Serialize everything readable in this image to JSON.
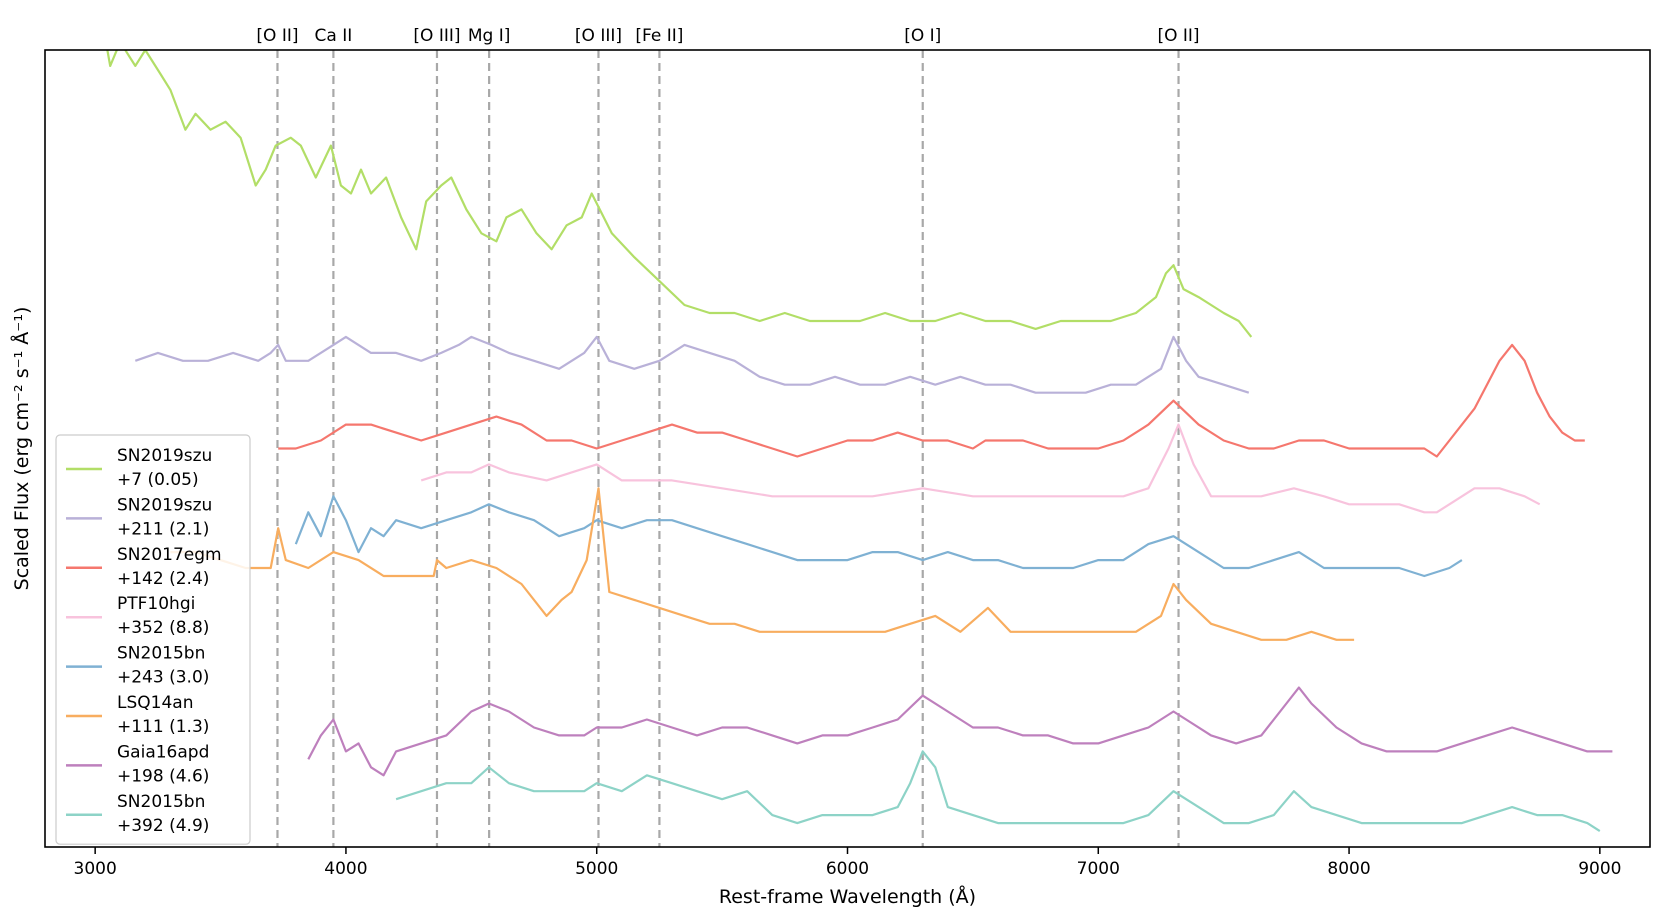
{
  "chart_data": {
    "type": "line",
    "xlabel": "Rest-frame Wavelength (Å)",
    "ylabel": "Scaled Flux (erg cm⁻² s⁻¹ Å⁻¹)",
    "xlim": [
      2800,
      9200
    ],
    "ylim": [
      0,
      100
    ],
    "xticks": [
      3000,
      4000,
      5000,
      6000,
      7000,
      8000,
      9000
    ],
    "y_tick_labels": false,
    "legend_placement": "lower-left",
    "grid": false,
    "lines": [
      {
        "label": "[O II]",
        "x": 3727
      },
      {
        "label": "Ca II",
        "x": 3950
      },
      {
        "label": "[O III]",
        "x": 4363
      },
      {
        "label": "Mg I]",
        "x": 4571
      },
      {
        "label": "[O III]",
        "x": 5007
      },
      {
        "label": "[Fe II]",
        "x": 5250
      },
      {
        "label": "[O I]",
        "x": 6300
      },
      {
        "label": "[O II]",
        "x": 7320
      }
    ],
    "series": [
      {
        "name": "SN2019szu",
        "phase": "+7 (0.05)",
        "color": "#b2de67",
        "x": [
          3020,
          3060,
          3100,
          3160,
          3200,
          3260,
          3300,
          3360,
          3400,
          3460,
          3520,
          3580,
          3640,
          3680,
          3720,
          3780,
          3820,
          3880,
          3940,
          3980,
          4020,
          4060,
          4100,
          4160,
          4220,
          4280,
          4320,
          4380,
          4420,
          4480,
          4540,
          4600,
          4640,
          4700,
          4760,
          4820,
          4880,
          4940,
          4980,
          5060,
          5150,
          5250,
          5350,
          5450,
          5550,
          5650,
          5750,
          5850,
          5950,
          6050,
          6150,
          6250,
          6350,
          6450,
          6550,
          6650,
          6750,
          6850,
          6950,
          7050,
          7150,
          7230,
          7270,
          7300,
          7340,
          7400,
          7450,
          7500,
          7560,
          7610
        ],
        "y": [
          105,
          98,
          101,
          98,
          100,
          97,
          95,
          90,
          92,
          90,
          91,
          89,
          83,
          85,
          88,
          89,
          88,
          84,
          88,
          83,
          82,
          85,
          82,
          84,
          79,
          75,
          81,
          83,
          84,
          80,
          77,
          76,
          79,
          80,
          77,
          75,
          78,
          79,
          82,
          77,
          74,
          71,
          68,
          67,
          67,
          66,
          67,
          66,
          66,
          66,
          67,
          66,
          66,
          67,
          66,
          66,
          65,
          66,
          66,
          66,
          67,
          69,
          72,
          73,
          70,
          69,
          68,
          67,
          66,
          64
        ]
      },
      {
        "name": "SN2019szu",
        "phase": "+211 (2.1)",
        "color": "#b9b1d8",
        "x": [
          3160,
          3250,
          3350,
          3450,
          3550,
          3650,
          3700,
          3730,
          3760,
          3850,
          3950,
          4000,
          4100,
          4200,
          4300,
          4380,
          4450,
          4500,
          4580,
          4650,
          4750,
          4850,
          4950,
          5000,
          5050,
          5150,
          5250,
          5350,
          5450,
          5550,
          5650,
          5750,
          5850,
          5950,
          6050,
          6150,
          6250,
          6350,
          6450,
          6550,
          6650,
          6750,
          6850,
          6950,
          7050,
          7150,
          7250,
          7300,
          7350,
          7400,
          7500,
          7600
        ],
        "y": [
          61,
          62,
          61,
          61,
          62,
          61,
          62,
          63,
          61,
          61,
          63,
          64,
          62,
          62,
          61,
          62,
          63,
          64,
          63,
          62,
          61,
          60,
          62,
          64,
          61,
          60,
          61,
          63,
          62,
          61,
          59,
          58,
          58,
          59,
          58,
          58,
          59,
          58,
          59,
          58,
          58,
          57,
          57,
          57,
          58,
          58,
          60,
          64,
          61,
          59,
          58,
          57
        ]
      },
      {
        "name": "SN2017egm",
        "phase": "+142 (2.4)",
        "color": "#f5776e",
        "x": [
          3730,
          3800,
          3900,
          4000,
          4100,
          4200,
          4300,
          4400,
          4500,
          4600,
          4700,
          4800,
          4900,
          5000,
          5100,
          5200,
          5300,
          5400,
          5500,
          5600,
          5700,
          5800,
          5900,
          6000,
          6100,
          6200,
          6300,
          6400,
          6500,
          6550,
          6600,
          6700,
          6800,
          6900,
          7000,
          7100,
          7200,
          7300,
          7400,
          7500,
          7600,
          7700,
          7800,
          7900,
          8000,
          8100,
          8200,
          8300,
          8350,
          8400,
          8500,
          8600,
          8650,
          8700,
          8750,
          8800,
          8850,
          8900,
          8940
        ],
        "y": [
          50,
          50,
          51,
          53,
          53,
          52,
          51,
          52,
          53,
          54,
          53,
          51,
          51,
          50,
          51,
          52,
          53,
          52,
          52,
          51,
          50,
          49,
          50,
          51,
          51,
          52,
          51,
          51,
          50,
          51,
          51,
          51,
          50,
          50,
          50,
          51,
          53,
          56,
          53,
          51,
          50,
          50,
          51,
          51,
          50,
          50,
          50,
          50,
          49,
          51,
          55,
          61,
          63,
          61,
          57,
          54,
          52,
          51,
          51
        ]
      },
      {
        "name": "PTF10hgi",
        "phase": "+352 (8.8)",
        "color": "#f8c3dd",
        "x": [
          4300,
          4400,
          4500,
          4570,
          4650,
          4800,
          4900,
          5000,
          5100,
          5200,
          5300,
          5500,
          5700,
          5900,
          6100,
          6300,
          6500,
          6700,
          6900,
          7100,
          7200,
          7280,
          7320,
          7380,
          7450,
          7550,
          7650,
          7780,
          7900,
          8000,
          8100,
          8200,
          8300,
          8350,
          8400,
          8500,
          8600,
          8700,
          8760
        ],
        "y": [
          46,
          47,
          47,
          48,
          47,
          46,
          47,
          48,
          46,
          46,
          46,
          45,
          44,
          44,
          44,
          45,
          44,
          44,
          44,
          44,
          45,
          50,
          53,
          48,
          44,
          44,
          44,
          45,
          44,
          43,
          43,
          43,
          42,
          42,
          43,
          45,
          45,
          44,
          43
        ]
      },
      {
        "name": "SN2015bn",
        "phase": "+243 (3.0)",
        "color": "#7fb1d3",
        "x": [
          3800,
          3850,
          3900,
          3950,
          4000,
          4050,
          4100,
          4150,
          4200,
          4300,
          4400,
          4500,
          4570,
          4650,
          4750,
          4850,
          4950,
          5000,
          5100,
          5200,
          5300,
          5400,
          5500,
          5600,
          5700,
          5800,
          5900,
          6000,
          6100,
          6200,
          6300,
          6400,
          6500,
          6600,
          6700,
          6800,
          6900,
          7000,
          7100,
          7200,
          7300,
          7400,
          7500,
          7600,
          7700,
          7800,
          7900,
          8000,
          8100,
          8200,
          8300,
          8400,
          8450
        ],
        "y": [
          38,
          42,
          39,
          44,
          41,
          37,
          40,
          39,
          41,
          40,
          41,
          42,
          43,
          42,
          41,
          39,
          40,
          41,
          40,
          41,
          41,
          40,
          39,
          38,
          37,
          36,
          36,
          36,
          37,
          37,
          36,
          37,
          36,
          36,
          35,
          35,
          35,
          36,
          36,
          38,
          39,
          37,
          35,
          35,
          36,
          37,
          35,
          35,
          35,
          35,
          34,
          35,
          36
        ]
      },
      {
        "name": "LSQ14an",
        "phase": "+111 (1.3)",
        "color": "#f8ad5f",
        "x": [
          3300,
          3400,
          3500,
          3600,
          3700,
          3730,
          3760,
          3850,
          3950,
          4050,
          4150,
          4250,
          4350,
          4363,
          4400,
          4500,
          4600,
          4700,
          4800,
          4860,
          4900,
          4960,
          5007,
          5050,
          5150,
          5250,
          5350,
          5450,
          5550,
          5650,
          5750,
          5850,
          5950,
          6050,
          6150,
          6250,
          6350,
          6450,
          6560,
          6650,
          6750,
          6850,
          6950,
          7050,
          7150,
          7250,
          7300,
          7350,
          7450,
          7550,
          7650,
          7750,
          7850,
          7950,
          8020
        ],
        "y": [
          37,
          37,
          36,
          35,
          35,
          40,
          36,
          35,
          37,
          36,
          34,
          34,
          34,
          36,
          35,
          36,
          35,
          33,
          29,
          31,
          32,
          36,
          45,
          32,
          31,
          30,
          29,
          28,
          28,
          27,
          27,
          27,
          27,
          27,
          27,
          28,
          29,
          27,
          30,
          27,
          27,
          27,
          27,
          27,
          27,
          29,
          33,
          31,
          28,
          27,
          26,
          26,
          27,
          26,
          26
        ]
      },
      {
        "name": "Gaia16apd",
        "phase": "+198 (4.6)",
        "color": "#be80bd",
        "x": [
          3850,
          3900,
          3950,
          4000,
          4050,
          4100,
          4150,
          4200,
          4300,
          4400,
          4500,
          4570,
          4650,
          4750,
          4850,
          4950,
          5000,
          5100,
          5200,
          5300,
          5400,
          5500,
          5600,
          5700,
          5800,
          5900,
          6000,
          6100,
          6200,
          6300,
          6400,
          6500,
          6600,
          6700,
          6800,
          6900,
          7000,
          7100,
          7200,
          7300,
          7350,
          7450,
          7550,
          7650,
          7750,
          7800,
          7850,
          7950,
          8050,
          8150,
          8250,
          8350,
          8450,
          8550,
          8650,
          8750,
          8850,
          8950,
          9050
        ],
        "y": [
          11,
          14,
          16,
          12,
          13,
          10,
          9,
          12,
          13,
          14,
          17,
          18,
          17,
          15,
          14,
          14,
          15,
          15,
          16,
          15,
          14,
          15,
          15,
          14,
          13,
          14,
          14,
          15,
          16,
          19,
          17,
          15,
          15,
          14,
          14,
          13,
          13,
          14,
          15,
          17,
          16,
          14,
          13,
          14,
          18,
          20,
          18,
          15,
          13,
          12,
          12,
          12,
          13,
          14,
          15,
          14,
          13,
          12,
          12
        ]
      },
      {
        "name": "SN2015bn",
        "phase": "+392 (4.9)",
        "color": "#8dd3c7",
        "x": [
          4200,
          4300,
          4400,
          4500,
          4570,
          4650,
          4750,
          4850,
          4950,
          5000,
          5100,
          5200,
          5300,
          5400,
          5500,
          5600,
          5700,
          5800,
          5900,
          6000,
          6100,
          6200,
          6250,
          6300,
          6350,
          6400,
          6500,
          6600,
          6700,
          6800,
          6900,
          7000,
          7100,
          7200,
          7300,
          7400,
          7500,
          7600,
          7700,
          7780,
          7850,
          7950,
          8050,
          8150,
          8250,
          8350,
          8450,
          8550,
          8650,
          8750,
          8850,
          8950,
          9000
        ],
        "y": [
          6,
          7,
          8,
          8,
          10,
          8,
          7,
          7,
          7,
          8,
          7,
          9,
          8,
          7,
          6,
          7,
          4,
          3,
          4,
          4,
          4,
          5,
          8,
          12,
          10,
          5,
          4,
          3,
          3,
          3,
          3,
          3,
          3,
          4,
          7,
          5,
          3,
          3,
          4,
          7,
          5,
          4,
          3,
          3,
          3,
          3,
          3,
          4,
          5,
          4,
          4,
          3,
          2
        ]
      }
    ]
  }
}
